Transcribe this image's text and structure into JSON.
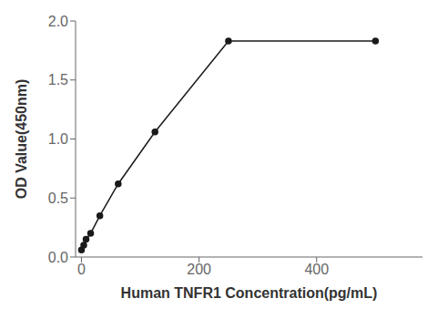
{
  "chart_data": {
    "type": "line",
    "x": [
      0,
      3.9,
      7.8,
      15.6,
      31.25,
      62.5,
      125,
      250,
      500
    ],
    "values": [
      0.06,
      0.1,
      0.15,
      0.2,
      0.35,
      0.62,
      1.06,
      1.83,
      1.83
    ],
    "xlabel": "Human TNFR1 Concentration(pg/mL)",
    "ylabel": "OD Value(450nm)",
    "xlim": [
      -10,
      580
    ],
    "ylim": [
      0.0,
      2.0
    ],
    "xticks": [
      0,
      200,
      400
    ],
    "yticks": [
      {
        "value": 0,
        "label": "0.0"
      },
      0.5,
      {
        "value": 1,
        "label": "1.0"
      },
      1.5,
      {
        "value": 2,
        "label": "2.0"
      }
    ],
    "color": "#1a1a1a",
    "marker": "circle",
    "grid": false
  }
}
